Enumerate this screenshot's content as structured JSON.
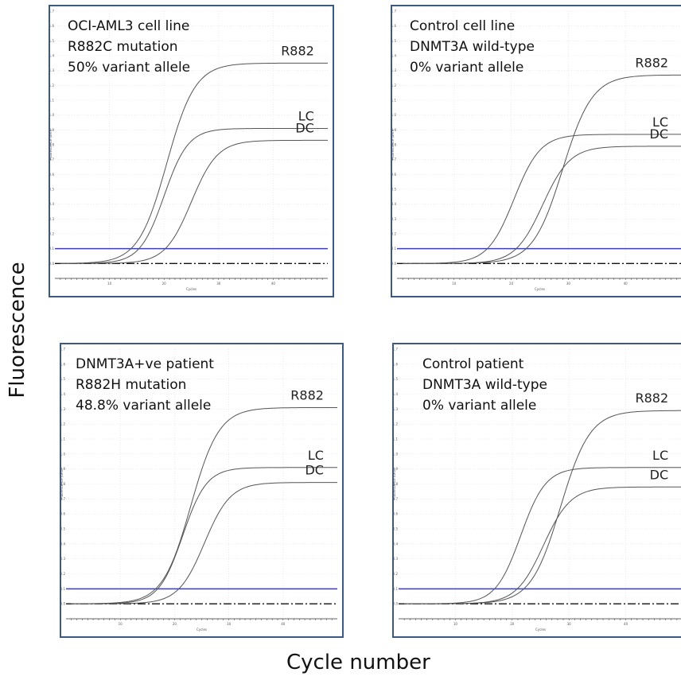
{
  "figure": {
    "ylabel": "Fluorescence",
    "xlabel": "Cycle number"
  },
  "chart_data": [
    {
      "type": "line",
      "annotation": [
        "OCI-AML3 cell line",
        "R882C mutation",
        "50% variant allele"
      ],
      "xlabel": "Cycles",
      "ylabel": "Fluorescence (dRn)",
      "xlim": [
        0,
        50
      ],
      "ylim": [
        -0.1,
        1.7
      ],
      "xticks": [
        10,
        20,
        30,
        40
      ],
      "yticks": [
        0,
        0.1,
        0.2,
        0.3,
        0.4,
        0.5,
        0.6,
        0.7,
        0.8,
        0.9,
        1.0,
        1.1,
        1.2,
        1.3,
        1.4,
        1.5,
        1.6,
        1.7
      ],
      "threshold": 0.1,
      "threshold_color": "#3a3ad8",
      "series": [
        {
          "name": "R882",
          "plateau": 1.35,
          "midpoint": 20.5,
          "slope": 2.6
        },
        {
          "name": "LC",
          "plateau": 0.91,
          "midpoint": 20.0,
          "slope": 2.2
        },
        {
          "name": "DC",
          "plateau": 0.83,
          "midpoint": 25.0,
          "slope": 2.4
        }
      ]
    },
    {
      "type": "line",
      "annotation": [
        "Control cell line",
        "DNMT3A wild-type",
        "0% variant allele"
      ],
      "xlabel": "Cycles",
      "ylabel": "Fluorescence (dRn)",
      "xlim": [
        0,
        50
      ],
      "ylim": [
        -0.1,
        1.7
      ],
      "xticks": [
        10,
        20,
        30,
        40
      ],
      "yticks": [
        0,
        0.1,
        0.2,
        0.3,
        0.4,
        0.5,
        0.6,
        0.7,
        0.8,
        0.9,
        1.0,
        1.1,
        1.2,
        1.3,
        1.4,
        1.5,
        1.6,
        1.7
      ],
      "threshold": 0.1,
      "threshold_color": "#3a3ad8",
      "series": [
        {
          "name": "R882",
          "plateau": 1.27,
          "midpoint": 29.0,
          "slope": 2.6
        },
        {
          "name": "LC",
          "plateau": 0.87,
          "midpoint": 20.5,
          "slope": 2.3
        },
        {
          "name": "DC",
          "plateau": 0.79,
          "midpoint": 25.5,
          "slope": 2.4
        }
      ]
    },
    {
      "type": "line",
      "annotation": [
        "DNMT3A+ve patient",
        "R882H mutation",
        "48.8% variant allele"
      ],
      "xlabel": "Cycles",
      "ylabel": "Fluorescence (dRn)",
      "xlim": [
        0,
        50
      ],
      "ylim": [
        -0.1,
        1.7
      ],
      "xticks": [
        10,
        20,
        30,
        40
      ],
      "yticks": [
        0,
        0.1,
        0.2,
        0.3,
        0.4,
        0.5,
        0.6,
        0.7,
        0.8,
        0.9,
        1.0,
        1.1,
        1.2,
        1.3,
        1.4,
        1.5,
        1.6,
        1.7
      ],
      "threshold": 0.1,
      "threshold_color": "#3a3ad8",
      "series": [
        {
          "name": "R882",
          "plateau": 1.31,
          "midpoint": 23.0,
          "slope": 2.6
        },
        {
          "name": "LC",
          "plateau": 0.91,
          "midpoint": 21.5,
          "slope": 2.2
        },
        {
          "name": "DC",
          "plateau": 0.81,
          "midpoint": 25.5,
          "slope": 2.4
        }
      ]
    },
    {
      "type": "line",
      "annotation": [
        "Control patient",
        "DNMT3A wild-type",
        "0% variant allele"
      ],
      "xlabel": "Cycles",
      "ylabel": "Fluorescence (dRn)",
      "xlim": [
        0,
        50
      ],
      "ylim": [
        -0.1,
        1.7
      ],
      "xticks": [
        10,
        20,
        30,
        40
      ],
      "yticks": [
        0,
        0.1,
        0.2,
        0.3,
        0.4,
        0.5,
        0.6,
        0.7,
        0.8,
        0.9,
        1.0,
        1.1,
        1.2,
        1.3,
        1.4,
        1.5,
        1.6,
        1.7
      ],
      "threshold": 0.1,
      "threshold_color": "#3a3ad8",
      "series": [
        {
          "name": "R882",
          "plateau": 1.29,
          "midpoint": 28.5,
          "slope": 2.6
        },
        {
          "name": "LC",
          "plateau": 0.91,
          "midpoint": 21.5,
          "slope": 2.2
        },
        {
          "name": "DC",
          "plateau": 0.78,
          "midpoint": 25.5,
          "slope": 2.4
        }
      ]
    }
  ]
}
